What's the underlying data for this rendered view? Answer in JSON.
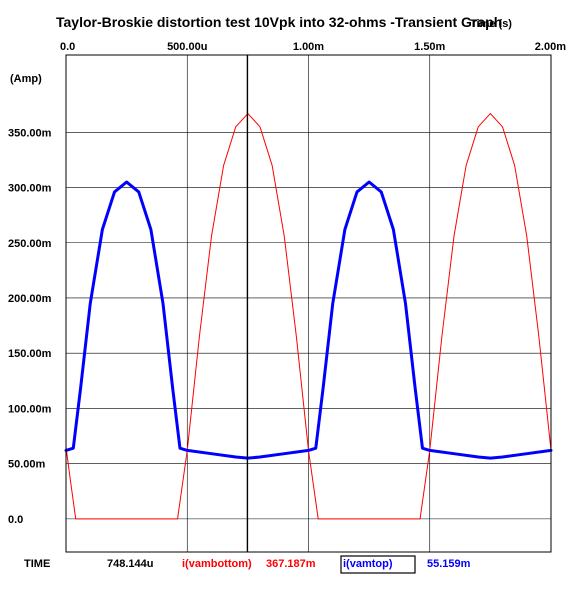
{
  "chart_data": {
    "type": "line",
    "title": "Taylor-Broskie distortion test 10Vpk into 32-ohms -Transient Graph",
    "xlabel": "Time  (s)",
    "ylabel": "(Amp)",
    "x_scale": 0.001,
    "xlim": [
      0,
      0.002
    ],
    "ylim": [
      -0.03,
      0.42
    ],
    "x_ticks": [
      {
        "value": 0,
        "label": "0.0"
      },
      {
        "value": 0.0005,
        "label": "500.00u"
      },
      {
        "value": 0.001,
        "label": "1.00m"
      },
      {
        "value": 0.0015,
        "label": "1.50m"
      },
      {
        "value": 0.002,
        "label": "2.00m"
      }
    ],
    "y_ticks": [
      {
        "value": 0,
        "label": "0.0"
      },
      {
        "value": 0.05,
        "label": "50.00m"
      },
      {
        "value": 0.1,
        "label": "100.00m"
      },
      {
        "value": 0.15,
        "label": "150.00m"
      },
      {
        "value": 0.2,
        "label": "200.00m"
      },
      {
        "value": 0.25,
        "label": "250.00m"
      },
      {
        "value": 0.3,
        "label": "300.00m"
      },
      {
        "value": 0.35,
        "label": "350.00m"
      }
    ],
    "grid": true,
    "cursor": {
      "x": 0.000748144
    },
    "series": [
      {
        "name": "i(vambottom)",
        "color": "#ff0000",
        "line_width": 1,
        "points": [
          [
            0,
            0.065
          ],
          [
            2e-05,
            0.032
          ],
          [
            4e-05,
            0.0
          ],
          [
            0.00046,
            0.0
          ],
          [
            0.0005,
            0.062
          ],
          [
            0.00055,
            0.165
          ],
          [
            0.0006,
            0.256
          ],
          [
            0.00065,
            0.32
          ],
          [
            0.0007,
            0.355
          ],
          [
            0.00075,
            0.367
          ],
          [
            0.0008,
            0.355
          ],
          [
            0.00085,
            0.32
          ],
          [
            0.0009,
            0.256
          ],
          [
            0.00095,
            0.165
          ],
          [
            0.001,
            0.062
          ],
          [
            0.00104,
            0.0
          ],
          [
            0.00146,
            0.0
          ],
          [
            0.0015,
            0.062
          ],
          [
            0.00155,
            0.165
          ],
          [
            0.0016,
            0.256
          ],
          [
            0.00165,
            0.32
          ],
          [
            0.0017,
            0.355
          ],
          [
            0.00175,
            0.367
          ],
          [
            0.0018,
            0.355
          ],
          [
            0.00185,
            0.32
          ],
          [
            0.0019,
            0.256
          ],
          [
            0.00195,
            0.165
          ],
          [
            0.002,
            0.062
          ]
        ]
      },
      {
        "name": "i(vamtop)",
        "color": "#0000ff",
        "line_width": 3,
        "points": [
          [
            0,
            0.062
          ],
          [
            3e-05,
            0.064
          ],
          [
            6e-05,
            0.118
          ],
          [
            0.0001,
            0.195
          ],
          [
            0.00015,
            0.262
          ],
          [
            0.0002,
            0.296
          ],
          [
            0.00025,
            0.305
          ],
          [
            0.0003,
            0.296
          ],
          [
            0.00035,
            0.262
          ],
          [
            0.0004,
            0.195
          ],
          [
            0.00044,
            0.118
          ],
          [
            0.00047,
            0.064
          ],
          [
            0.0005,
            0.062
          ],
          [
            0.0006,
            0.059
          ],
          [
            0.0007,
            0.056
          ],
          [
            0.00075,
            0.055
          ],
          [
            0.0008,
            0.056
          ],
          [
            0.0009,
            0.059
          ],
          [
            0.001,
            0.062
          ],
          [
            0.00103,
            0.064
          ],
          [
            0.00106,
            0.118
          ],
          [
            0.0011,
            0.195
          ],
          [
            0.00115,
            0.262
          ],
          [
            0.0012,
            0.296
          ],
          [
            0.00125,
            0.305
          ],
          [
            0.0013,
            0.296
          ],
          [
            0.00135,
            0.262
          ],
          [
            0.0014,
            0.195
          ],
          [
            0.00144,
            0.118
          ],
          [
            0.00147,
            0.064
          ],
          [
            0.0015,
            0.062
          ],
          [
            0.0016,
            0.059
          ],
          [
            0.0017,
            0.056
          ],
          [
            0.00175,
            0.055
          ],
          [
            0.0018,
            0.056
          ],
          [
            0.0019,
            0.059
          ],
          [
            0.002,
            0.062
          ]
        ]
      }
    ]
  },
  "readout": {
    "label": "TIME",
    "time_value": "748.144u",
    "series1_name": "i(vambottom)",
    "series1_value": "367.187m",
    "series2_name": "i(vamtop)",
    "series2_value": "55.159m",
    "series1_color": "#ff0000",
    "series2_color": "#0000ff"
  }
}
